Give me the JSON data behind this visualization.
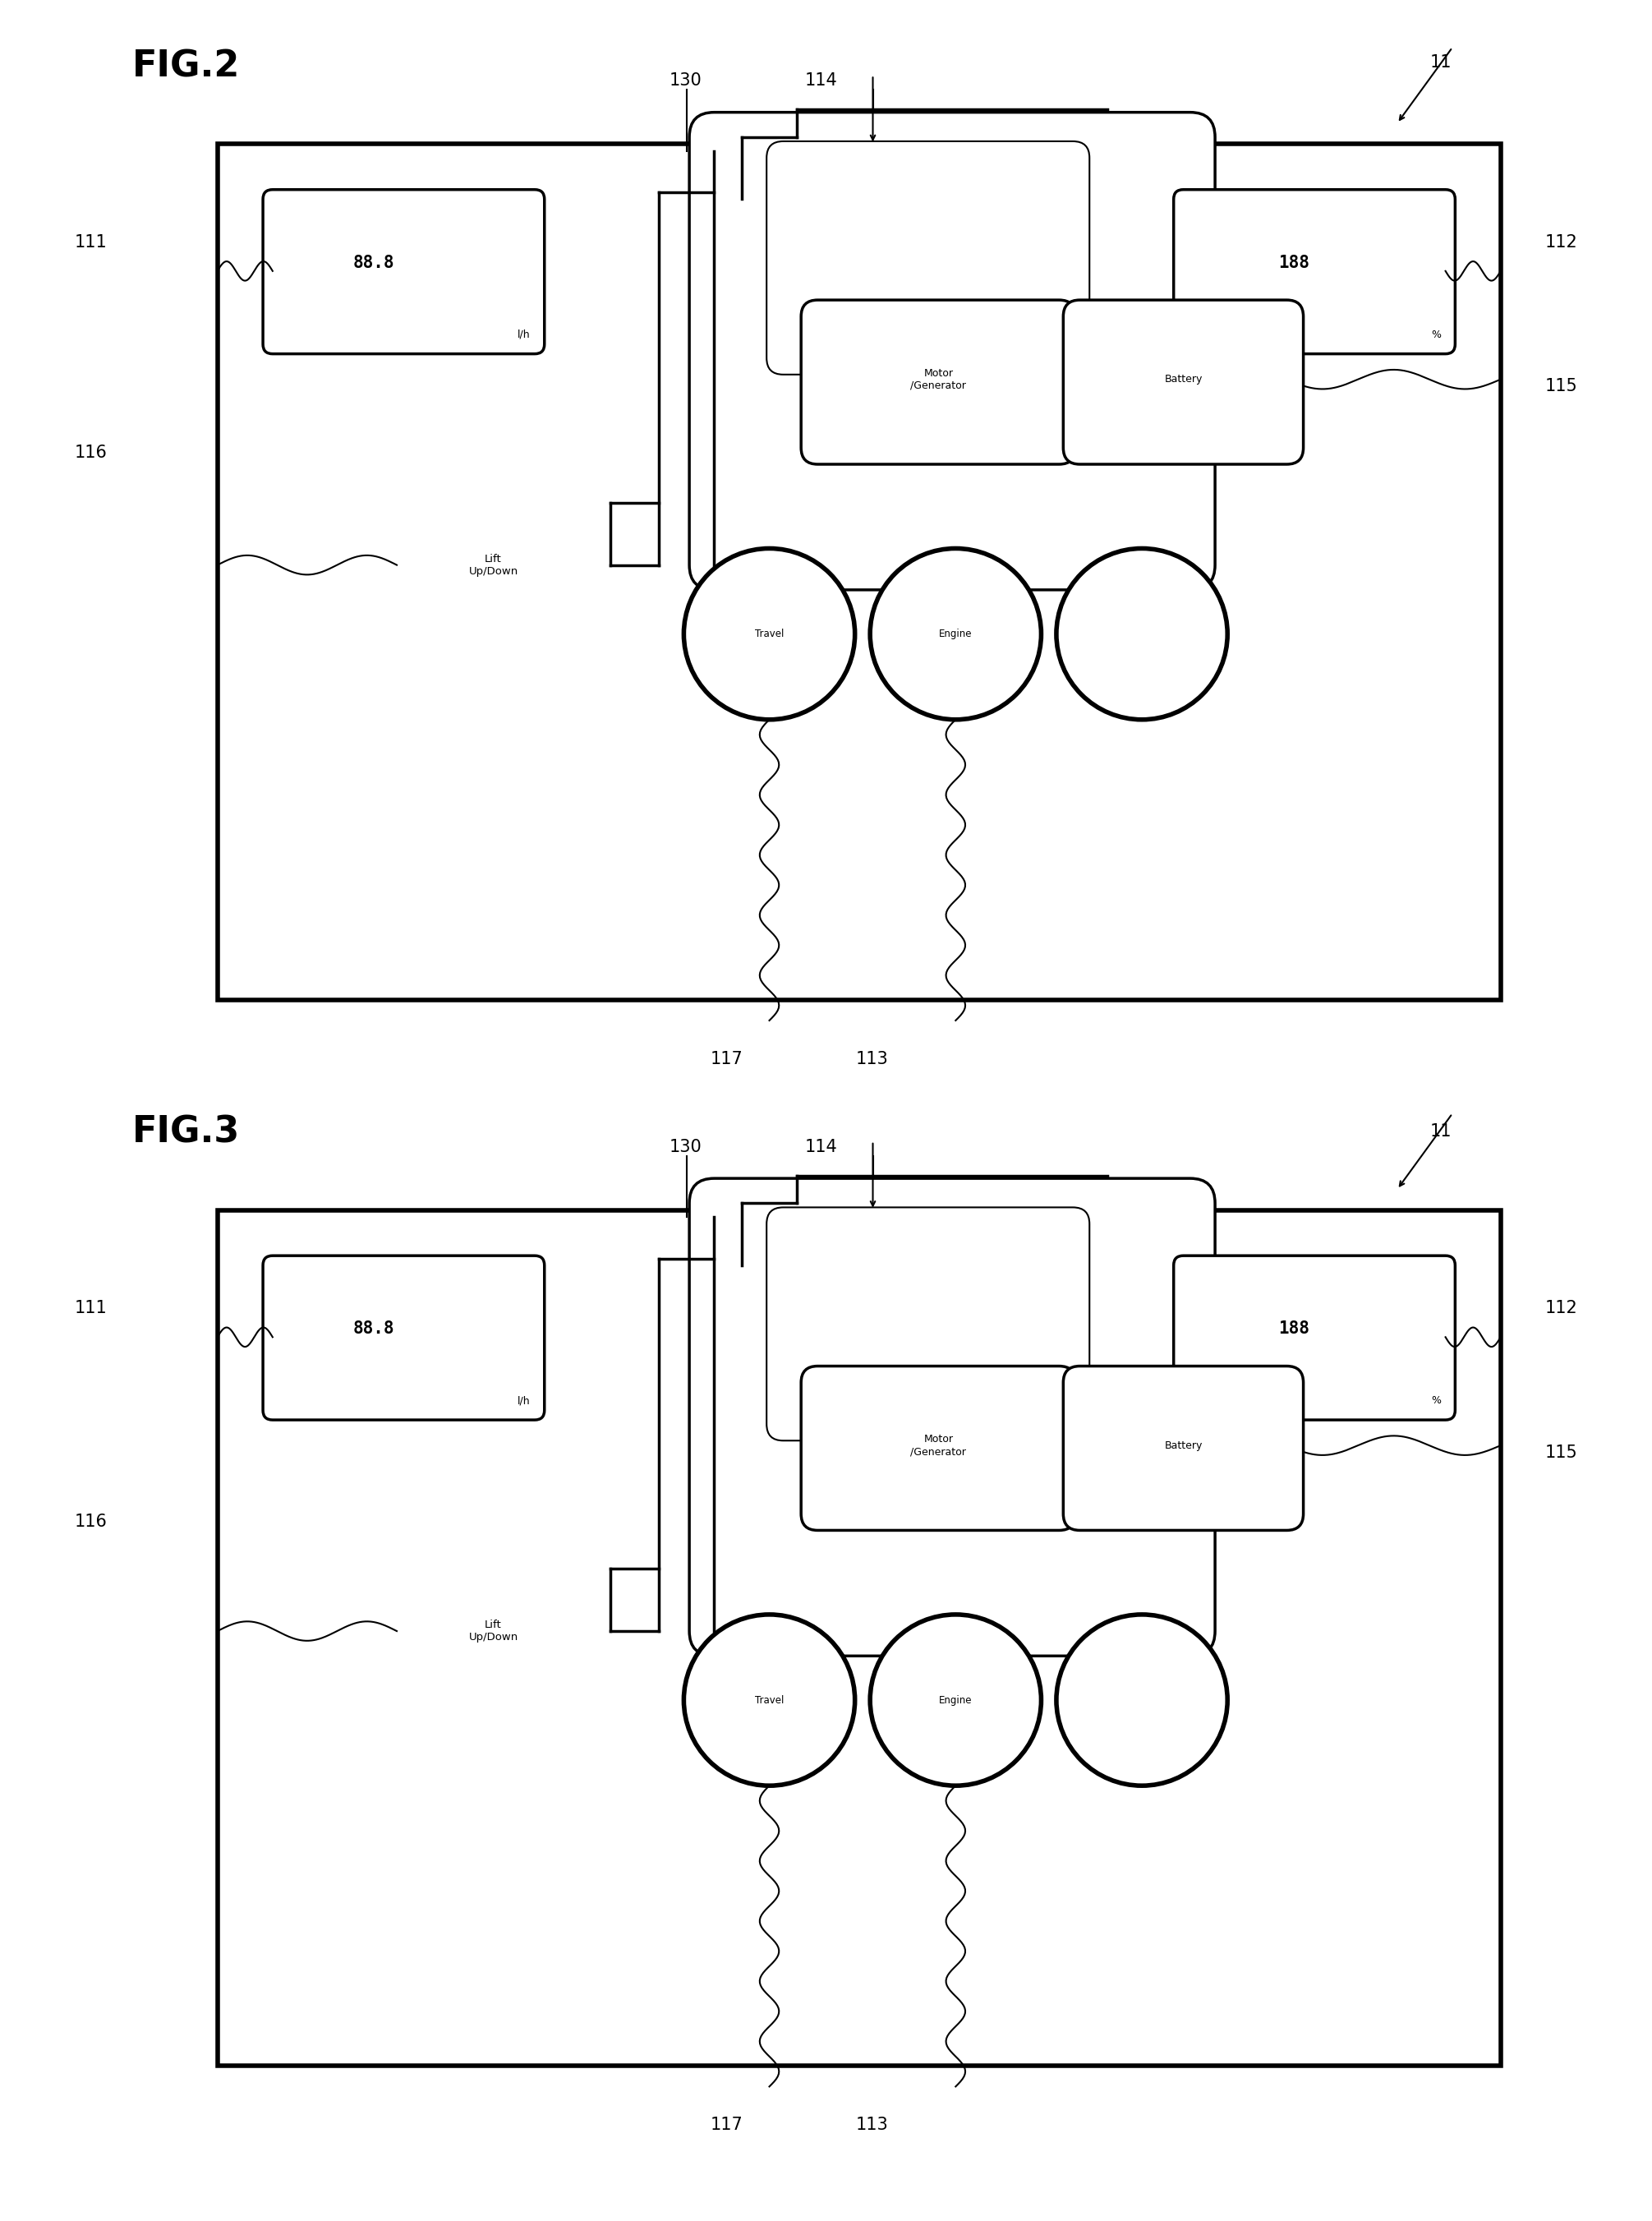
{
  "fig_title1": "FIG.2",
  "fig_title2": "FIG.3",
  "background_color": "#ffffff",
  "line_color": "#000000",
  "label_11": "11",
  "label_111": "111",
  "label_112": "112",
  "label_113": "113",
  "label_114": "114",
  "label_115": "115",
  "label_116": "116",
  "label_117": "117",
  "label_130": "130",
  "label_motor": "Motor\n/Generator",
  "label_battery": "Battery",
  "label_engine": "Engine",
  "label_travel": "Travel",
  "label_lift": "Lift\nUp/Down",
  "display_left": "88.8",
  "display_left_unit": "l/h",
  "display_right": "188",
  "display_right_unit": "%"
}
